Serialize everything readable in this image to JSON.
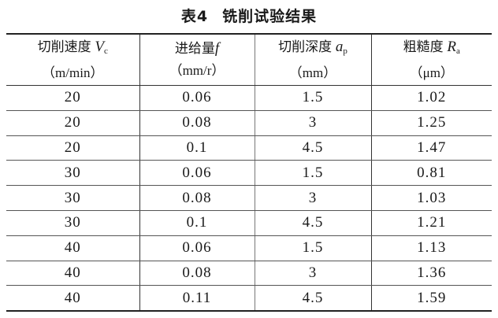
{
  "title": {
    "label": "表4",
    "text": "铣削试验结果"
  },
  "columns": [
    {
      "name": "切削速度",
      "symbol": "V",
      "subscript": "c",
      "unit": "（m/min）"
    },
    {
      "name": "进给量",
      "symbol": "f",
      "subscript": "",
      "unit": "（mm/r）"
    },
    {
      "name": "切削深度",
      "symbol": "a",
      "subscript": "p",
      "unit": "（mm）"
    },
    {
      "name": "粗糙度",
      "symbol": "R",
      "subscript": "a",
      "unit": "（μm）"
    }
  ],
  "rows": [
    [
      "20",
      "0.06",
      "1.5",
      "1.02"
    ],
    [
      "20",
      "0.08",
      "3",
      "1.25"
    ],
    [
      "20",
      "0.1",
      "4.5",
      "1.47"
    ],
    [
      "30",
      "0.06",
      "1.5",
      "0.81"
    ],
    [
      "30",
      "0.08",
      "3",
      "1.03"
    ],
    [
      "30",
      "0.1",
      "4.5",
      "1.21"
    ],
    [
      "40",
      "0.06",
      "1.5",
      "1.13"
    ],
    [
      "40",
      "0.08",
      "3",
      "1.36"
    ],
    [
      "40",
      "0.11",
      "4.5",
      "1.59"
    ]
  ]
}
